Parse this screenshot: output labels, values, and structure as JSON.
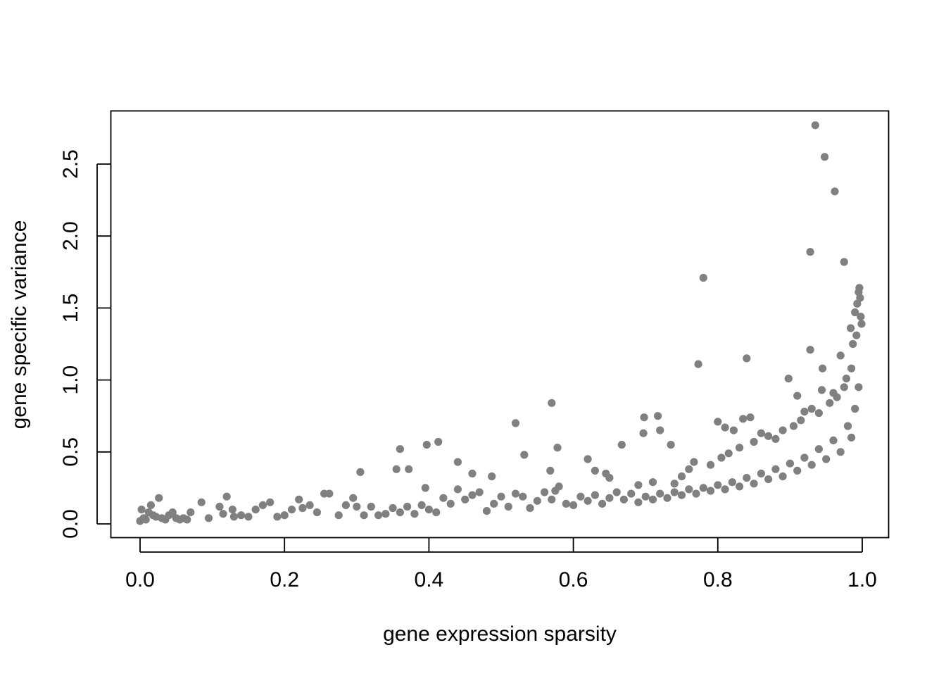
{
  "chart_data": {
    "type": "scatter",
    "title": "",
    "xlabel": "gene expression sparsity",
    "ylabel": "gene specific variance",
    "xlim": [
      0.0,
      1.0
    ],
    "ylim": [
      0.0,
      2.8
    ],
    "x_ticks": [
      "0.0",
      "0.2",
      "0.4",
      "0.6",
      "0.8",
      "1.0"
    ],
    "y_ticks": [
      "0.0",
      "0.5",
      "1.0",
      "1.5",
      "2.0",
      "2.5"
    ],
    "grid": false,
    "legend": "none",
    "point_color": "#808080",
    "series": [
      {
        "points": [
          [
            0.935,
            2.77
          ],
          [
            0.948,
            2.55
          ],
          [
            0.962,
            2.31
          ],
          [
            0.928,
            1.89
          ],
          [
            0.975,
            1.82
          ],
          [
            0.78,
            1.71
          ],
          [
            0.84,
            1.15
          ],
          [
            0.773,
            1.11
          ],
          [
            0.928,
            1.21
          ],
          [
            0.898,
            1.01
          ],
          [
            0.945,
            1.08
          ],
          [
            0.57,
            0.84
          ],
          [
            0.698,
            0.74
          ],
          [
            0.717,
            0.75
          ],
          [
            0.52,
            0.7
          ],
          [
            0.578,
            0.53
          ],
          [
            0.532,
            0.48
          ],
          [
            0.568,
            0.37
          ],
          [
            0.667,
            0.55
          ],
          [
            0.697,
            0.63
          ],
          [
            0.72,
            0.65
          ],
          [
            0.735,
            0.55
          ],
          [
            0.413,
            0.57
          ],
          [
            0.397,
            0.55
          ],
          [
            0.36,
            0.52
          ],
          [
            0.355,
            0.38
          ],
          [
            0.372,
            0.38
          ],
          [
            0.305,
            0.36
          ],
          [
            0.44,
            0.43
          ],
          [
            0.46,
            0.35
          ],
          [
            0.487,
            0.33
          ],
          [
            0.395,
            0.25
          ],
          [
            0.8,
            0.71
          ],
          [
            0.81,
            0.67
          ],
          [
            0.822,
            0.65
          ],
          [
            0.835,
            0.73
          ],
          [
            0.845,
            0.74
          ],
          [
            0.86,
            0.63
          ],
          [
            0.88,
            0.59
          ],
          [
            0.91,
            0.89
          ],
          [
            0.944,
            0.93
          ],
          [
            0.96,
            0.91
          ],
          [
            0.97,
            1.17
          ],
          [
            0.978,
            1.01
          ],
          [
            0.984,
            1.36
          ],
          [
            0.987,
            1.25
          ],
          [
            0.99,
            1.47
          ],
          [
            0.993,
            1.53
          ],
          [
            0.995,
            1.61
          ],
          [
            0.996,
            1.64
          ],
          [
            0.997,
            1.57
          ],
          [
            0.998,
            1.44
          ],
          [
            0.999,
            1.39
          ],
          [
            0.992,
            1.31
          ],
          [
            0.985,
            1.08
          ],
          [
            0.62,
            0.45
          ],
          [
            0.63,
            0.37
          ],
          [
            0.645,
            0.35
          ],
          [
            0.65,
            0.32
          ],
          [
            0.69,
            0.27
          ],
          [
            0.71,
            0.29
          ],
          [
            0.74,
            0.28
          ],
          [
            0.75,
            0.33
          ],
          [
            0.76,
            0.38
          ],
          [
            0.767,
            0.43
          ],
          [
            0.79,
            0.41
          ],
          [
            0.805,
            0.46
          ],
          [
            0.815,
            0.49
          ],
          [
            0.83,
            0.53
          ],
          [
            0.85,
            0.57
          ],
          [
            0.87,
            0.61
          ],
          [
            0.89,
            0.65
          ],
          [
            0.905,
            0.68
          ],
          [
            0.915,
            0.72
          ],
          [
            0.92,
            0.78
          ],
          [
            0.93,
            0.8
          ],
          [
            0.94,
            0.77
          ],
          [
            0.955,
            0.84
          ],
          [
            0.965,
            0.88
          ],
          [
            0.975,
            0.95
          ],
          [
            0.0,
            0.02
          ],
          [
            0.002,
            0.1
          ],
          [
            0.005,
            0.04
          ],
          [
            0.008,
            0.03
          ],
          [
            0.012,
            0.08
          ],
          [
            0.015,
            0.13
          ],
          [
            0.018,
            0.06
          ],
          [
            0.022,
            0.05
          ],
          [
            0.026,
            0.18
          ],
          [
            0.03,
            0.04
          ],
          [
            0.035,
            0.03
          ],
          [
            0.04,
            0.06
          ],
          [
            0.045,
            0.08
          ],
          [
            0.05,
            0.04
          ],
          [
            0.055,
            0.03
          ],
          [
            0.06,
            0.04
          ],
          [
            0.065,
            0.03
          ],
          [
            0.07,
            0.08
          ],
          [
            0.085,
            0.15
          ],
          [
            0.095,
            0.04
          ],
          [
            0.11,
            0.12
          ],
          [
            0.115,
            0.07
          ],
          [
            0.12,
            0.19
          ],
          [
            0.128,
            0.1
          ],
          [
            0.13,
            0.05
          ],
          [
            0.14,
            0.06
          ],
          [
            0.15,
            0.05
          ],
          [
            0.16,
            0.1
          ],
          [
            0.17,
            0.13
          ],
          [
            0.18,
            0.15
          ],
          [
            0.19,
            0.05
          ],
          [
            0.2,
            0.06
          ],
          [
            0.21,
            0.1
          ],
          [
            0.22,
            0.17
          ],
          [
            0.225,
            0.11
          ],
          [
            0.235,
            0.13
          ],
          [
            0.245,
            0.08
          ],
          [
            0.255,
            0.21
          ],
          [
            0.262,
            0.21
          ],
          [
            0.275,
            0.06
          ],
          [
            0.285,
            0.13
          ],
          [
            0.295,
            0.18
          ],
          [
            0.3,
            0.12
          ],
          [
            0.31,
            0.06
          ],
          [
            0.32,
            0.12
          ],
          [
            0.33,
            0.06
          ],
          [
            0.34,
            0.07
          ],
          [
            0.35,
            0.11
          ],
          [
            0.36,
            0.08
          ],
          [
            0.37,
            0.12
          ],
          [
            0.38,
            0.07
          ],
          [
            0.39,
            0.13
          ],
          [
            0.4,
            0.1
          ],
          [
            0.41,
            0.08
          ],
          [
            0.42,
            0.18
          ],
          [
            0.43,
            0.14
          ],
          [
            0.44,
            0.24
          ],
          [
            0.45,
            0.17
          ],
          [
            0.46,
            0.2
          ],
          [
            0.47,
            0.22
          ],
          [
            0.48,
            0.09
          ],
          [
            0.49,
            0.14
          ],
          [
            0.5,
            0.19
          ],
          [
            0.51,
            0.12
          ],
          [
            0.52,
            0.21
          ],
          [
            0.53,
            0.19
          ],
          [
            0.54,
            0.11
          ],
          [
            0.55,
            0.16
          ],
          [
            0.56,
            0.22
          ],
          [
            0.57,
            0.17
          ],
          [
            0.575,
            0.23
          ],
          [
            0.58,
            0.26
          ],
          [
            0.59,
            0.14
          ],
          [
            0.6,
            0.13
          ],
          [
            0.61,
            0.19
          ],
          [
            0.62,
            0.16
          ],
          [
            0.63,
            0.2
          ],
          [
            0.64,
            0.14
          ],
          [
            0.65,
            0.18
          ],
          [
            0.66,
            0.22
          ],
          [
            0.67,
            0.17
          ],
          [
            0.68,
            0.21
          ],
          [
            0.69,
            0.15
          ],
          [
            0.7,
            0.19
          ],
          [
            0.71,
            0.17
          ],
          [
            0.72,
            0.21
          ],
          [
            0.73,
            0.18
          ],
          [
            0.74,
            0.22
          ],
          [
            0.75,
            0.2
          ],
          [
            0.76,
            0.24
          ],
          [
            0.77,
            0.21
          ],
          [
            0.78,
            0.25
          ],
          [
            0.79,
            0.23
          ],
          [
            0.8,
            0.27
          ],
          [
            0.81,
            0.24
          ],
          [
            0.82,
            0.29
          ],
          [
            0.83,
            0.26
          ],
          [
            0.84,
            0.32
          ],
          [
            0.85,
            0.28
          ],
          [
            0.86,
            0.35
          ],
          [
            0.87,
            0.31
          ],
          [
            0.88,
            0.38
          ],
          [
            0.89,
            0.33
          ],
          [
            0.9,
            0.42
          ],
          [
            0.91,
            0.37
          ],
          [
            0.92,
            0.46
          ],
          [
            0.93,
            0.41
          ],
          [
            0.94,
            0.52
          ],
          [
            0.95,
            0.45
          ],
          [
            0.96,
            0.58
          ],
          [
            0.97,
            0.5
          ],
          [
            0.98,
            0.68
          ],
          [
            0.985,
            0.6
          ],
          [
            0.99,
            0.8
          ],
          [
            0.995,
            0.95
          ]
        ]
      }
    ]
  }
}
